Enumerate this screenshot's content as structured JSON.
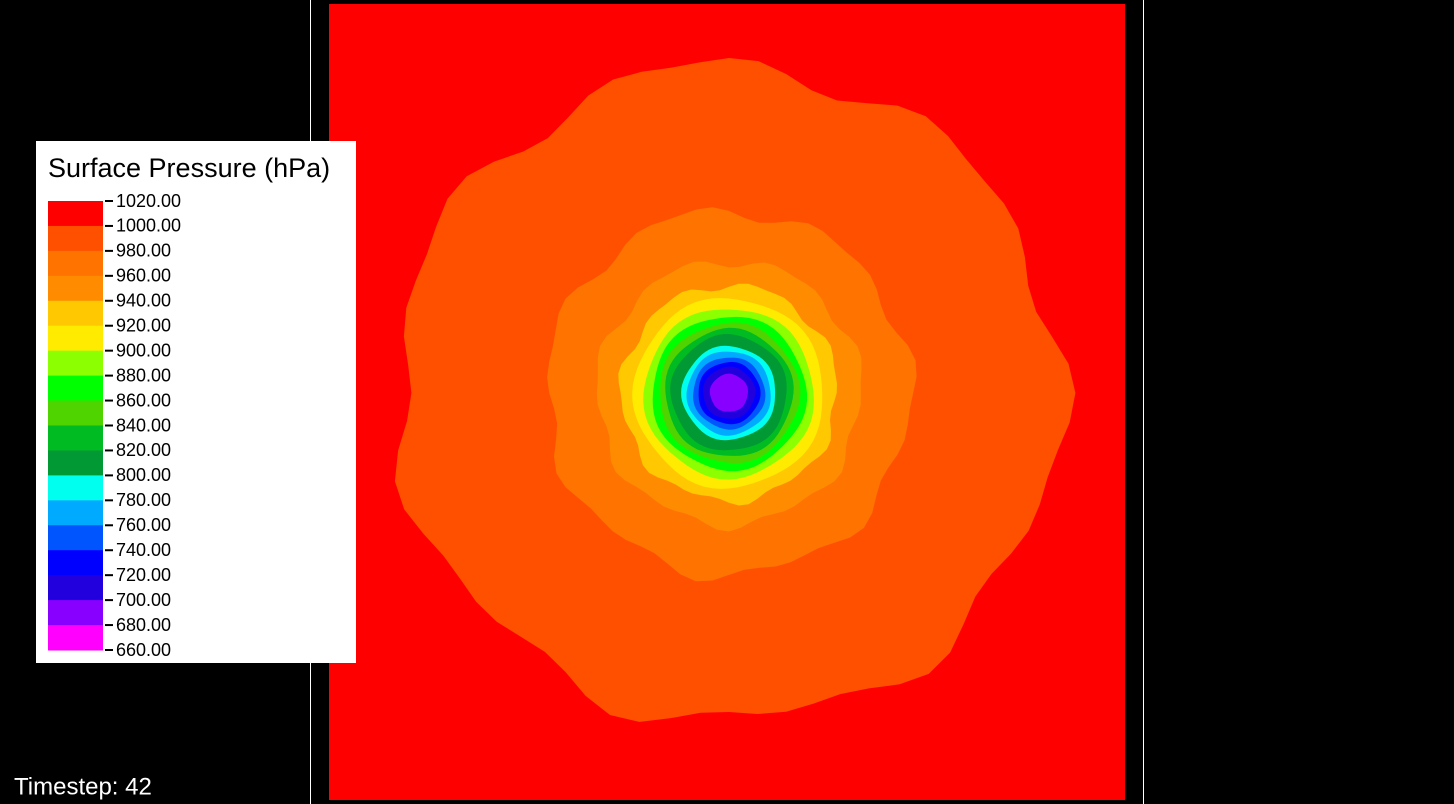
{
  "legend": {
    "title": "Surface Pressure (hPa)",
    "ticks": [
      "1020.00",
      "1000.00",
      "980.00",
      "960.00",
      "940.00",
      "920.00",
      "900.00",
      "880.00",
      "860.00",
      "840.00",
      "820.00",
      "800.00",
      "780.00",
      "760.00",
      "740.00",
      "720.00",
      "700.00",
      "680.00",
      "660.00"
    ],
    "colors": [
      "#ff0000",
      "#ff5000",
      "#ff7300",
      "#ff8c00",
      "#ffc800",
      "#ffeb00",
      "#8cff00",
      "#00ff00",
      "#50d400",
      "#00bb22",
      "#009933",
      "#00ffee",
      "#00aaff",
      "#0055ff",
      "#0000ff",
      "#2200dd",
      "#8800ff",
      "#ff00ff"
    ]
  },
  "status": {
    "timestep": "Timestep: 42"
  }
}
